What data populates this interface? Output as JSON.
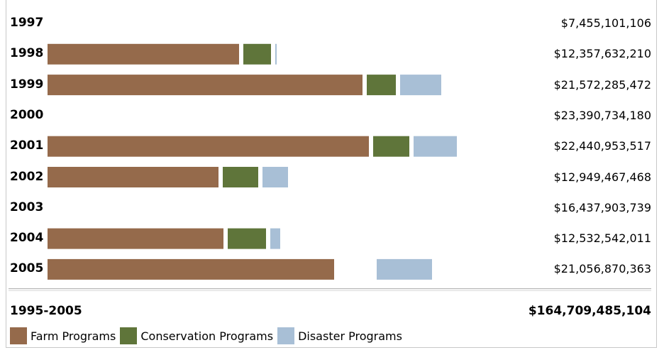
{
  "colors": {
    "farm": "#956a4b",
    "conservation": "#5f753a",
    "disaster": "#a8bfd6"
  },
  "chart_data": {
    "type": "bar",
    "stacked": true,
    "orientation": "horizontal",
    "categories": [
      "1997",
      "1998",
      "1999",
      "2000",
      "2001",
      "2002",
      "2003",
      "2004",
      "2005"
    ],
    "row_totals": [
      "$7,455,101,106",
      "$12,357,632,210",
      "$21,572,285,472",
      "$23,390,734,180",
      "$22,440,953,517",
      "$12,949,467,468",
      "$16,437,903,739",
      "$12,532,542,011",
      "$21,056,870,363"
    ],
    "series": [
      {
        "name": "Farm Programs",
        "color": "#956a4b",
        "values": [
          null,
          270,
          444,
          null,
          453,
          241,
          null,
          248,
          404
        ]
      },
      {
        "name": "Conservation Programs",
        "color": "#5f753a",
        "values": [
          null,
          39,
          41,
          null,
          51,
          50,
          null,
          54,
          0
        ]
      },
      {
        "name": "Disaster Programs",
        "color": "#a8bfd6",
        "values": [
          null,
          2,
          58,
          null,
          61,
          36,
          null,
          14,
          78
        ]
      }
    ],
    "gaps": [
      [
        0,
        0,
        0
      ],
      [
        0,
        6,
        6
      ],
      [
        0,
        6,
        6
      ],
      [
        0,
        0,
        0
      ],
      [
        0,
        6,
        6
      ],
      [
        0,
        6,
        6
      ],
      [
        0,
        0,
        0
      ],
      [
        0,
        6,
        6
      ],
      [
        0,
        60,
        0
      ]
    ],
    "total_label": "1995-2005",
    "total_value": "$164,709,485,104",
    "legend_placement": "bottom-left"
  }
}
